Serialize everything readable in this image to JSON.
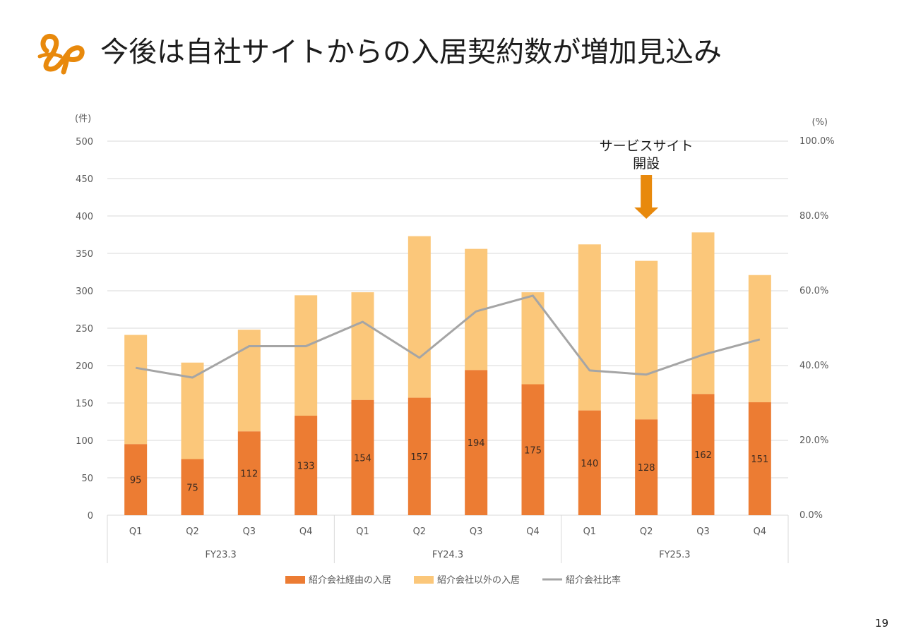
{
  "title": "今後は自社サイトからの入居契約数が増加見込み",
  "page_number": "19",
  "colors": {
    "brand": "#E8890C",
    "bar_referral": "#EC7C33",
    "bar_other": "#FBC77A",
    "line_ratio": "#A5A5A5",
    "grid": "#D9D9D9",
    "axis_text": "#595959"
  },
  "logo": {
    "icon": "lp-brand-logo-icon"
  },
  "chart_data": {
    "type": "bar",
    "stacked": true,
    "title": "",
    "y_unit_left": "(件)",
    "y_unit_right": "(%)",
    "ylim_left": [
      0,
      500
    ],
    "ylim_right": [
      0,
      100
    ],
    "left_ticks": [
      "500",
      "450",
      "400",
      "350",
      "300",
      "250",
      "200",
      "150",
      "100",
      "50",
      "0"
    ],
    "right_ticks": [
      "100.0%",
      "80.0%",
      "60.0%",
      "40.0%",
      "20.0%",
      "0.0%"
    ],
    "categories": [
      "Q1",
      "Q2",
      "Q3",
      "Q4",
      "Q1",
      "Q2",
      "Q3",
      "Q4",
      "Q1",
      "Q2",
      "Q3",
      "Q4"
    ],
    "groups": [
      {
        "label": "FY23.3",
        "span": 4
      },
      {
        "label": "FY24.3",
        "span": 4
      },
      {
        "label": "FY25.3",
        "span": 4
      }
    ],
    "series": [
      {
        "name": "紹介会社経由の入居",
        "type": "bar",
        "values": [
          95,
          75,
          112,
          133,
          154,
          157,
          194,
          175,
          140,
          128,
          162,
          151
        ],
        "labels": [
          "95",
          "75",
          "112",
          "133",
          "154",
          "157",
          "194",
          "175",
          "140",
          "128",
          "162",
          "151"
        ]
      },
      {
        "name": "紹介会社以外の入居",
        "type": "bar",
        "values": [
          146,
          129,
          136,
          161,
          144,
          216,
          162,
          123,
          222,
          212,
          216,
          170
        ]
      },
      {
        "name": "紹介会社比率",
        "type": "line",
        "axis": "right",
        "values": [
          39.4,
          36.8,
          45.2,
          45.2,
          51.7,
          42.1,
          54.5,
          58.7,
          38.7,
          37.6,
          42.9,
          47.0
        ]
      }
    ],
    "annotation": {
      "text_lines": [
        "サービスサイト",
        "開設"
      ],
      "category_index": 9
    },
    "legend": {
      "position": "bottom"
    },
    "grid": true
  }
}
